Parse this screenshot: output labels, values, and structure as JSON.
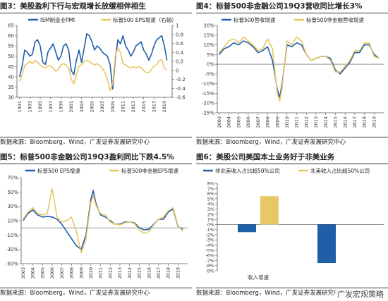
{
  "colors": {
    "blue": "#1f5fa8",
    "gold": "#e8c766",
    "axis": "#555555",
    "text": "#222222"
  },
  "panels": [
    {
      "title": "图3：美股盈利下行与宏观增长放缓相伴相生",
      "source": "数据来源：Bloomberg，Wind，广发证券发展研究中心"
    },
    {
      "title": "图4：标普500非金融公司19Q3营收同比增长3%",
      "source": "数据来源：Bloomberg，Wind，广发证券发展研究中心"
    },
    {
      "title": "图5：标普500非金融公司19Q3盈利同比下跌4.5%",
      "source": "数据来源：Bloomberg，Wind，广发证券发展研究中心"
    },
    {
      "title": "图6：美股公司美国本土业务好于非美业务",
      "source": "数据来源：Bloomberg，Wind，广发证券发展研究中心"
    }
  ],
  "watermark": "广发宏观策略",
  "chart_data": [
    {
      "type": "line",
      "series": [
        {
          "name": "ISM制造业PMI",
          "axis": "left",
          "color": "#1f5fa8",
          "x": [
            1991,
            1991.5,
            1992,
            1992.5,
            1993,
            1993.5,
            1994,
            1994.5,
            1995,
            1995.5,
            1996,
            1996.5,
            1997,
            1997.5,
            1998,
            1998.5,
            1999,
            1999.5,
            2000,
            2000.5,
            2001,
            2001.5,
            2002,
            2002.5,
            2003,
            2003.5,
            2004,
            2004.5,
            2005,
            2005.5,
            2006,
            2006.5,
            2007,
            2007.5,
            2008,
            2008.5,
            2009,
            2009.5,
            2010,
            2010.5,
            2011,
            2011.5,
            2012,
            2012.5,
            2013,
            2013.5,
            2014,
            2014.5,
            2015,
            2015.5,
            2016,
            2016.5,
            2017,
            2017.5,
            2018,
            2018.5,
            2019,
            2019.5
          ],
          "values": [
            40,
            45,
            53,
            52,
            50,
            51,
            57,
            58,
            55,
            47,
            46,
            52,
            54,
            56,
            52,
            48,
            50,
            55,
            56,
            53,
            43,
            41,
            48,
            53,
            47,
            54,
            61,
            60,
            57,
            53,
            55,
            54,
            52,
            51,
            50,
            46,
            34,
            48,
            58,
            56,
            60,
            55,
            53,
            50,
            52,
            55,
            56,
            57,
            53,
            51,
            48,
            51,
            55,
            58,
            59,
            60,
            55,
            48
          ]
        },
        {
          "name": "标普500 EPS增速（右轴）",
          "axis": "right",
          "color": "#e8c766",
          "x": [
            1991,
            1991.5,
            1992,
            1992.5,
            1993,
            1993.5,
            1994,
            1994.5,
            1995,
            1995.5,
            1996,
            1996.5,
            1997,
            1997.5,
            1998,
            1998.5,
            1999,
            1999.5,
            2000,
            2000.5,
            2001,
            2001.5,
            2002,
            2002.5,
            2003,
            2003.5,
            2004,
            2004.5,
            2005,
            2005.5,
            2006,
            2006.5,
            2007,
            2007.5,
            2008,
            2008.5,
            2009,
            2009.5,
            2010,
            2010.5,
            2011,
            2011.5,
            2012,
            2012.5,
            2013,
            2013.5,
            2014,
            2014.5,
            2015,
            2015.5,
            2016,
            2016.5,
            2017,
            2017.5,
            2018,
            2018.5,
            2019,
            2019.5
          ],
          "values": [
            -0.25,
            -0.1,
            0.1,
            0.15,
            0.2,
            0.15,
            0.22,
            0.18,
            0.12,
            0.08,
            0.05,
            0.1,
            0.1,
            0.05,
            -0.02,
            0.02,
            0.12,
            0.15,
            0.12,
            0.05,
            -0.2,
            -0.3,
            -0.1,
            0.1,
            0.12,
            0.2,
            0.22,
            0.2,
            0.15,
            0.12,
            0.15,
            0.1,
            0.05,
            -0.05,
            -0.2,
            -0.45,
            -0.3,
            0.3,
            0.5,
            0.4,
            0.15,
            0.12,
            0.08,
            0.05,
            0.08,
            0.06,
            0.08,
            0.06,
            0.0,
            -0.05,
            -0.05,
            0.02,
            0.1,
            0.12,
            0.22,
            0.24,
            0.05,
            0.01
          ]
        }
      ],
      "ylim_left": [
        30,
        65
      ],
      "yticks_left": [
        30,
        35,
        40,
        45,
        50,
        55,
        60,
        65
      ],
      "ylim_right": [
        -0.6,
        1.0
      ],
      "yticks_right": [
        "-0.6",
        "-0.4",
        "-0.2",
        "0",
        "0.2",
        "0.4",
        "0.6",
        "0.8",
        "1"
      ],
      "xticks": [
        "1991",
        "1993",
        "1995",
        "1997",
        "1999",
        "2001",
        "2003",
        "2005",
        "2007",
        "2009",
        "2011",
        "2013",
        "2015",
        "2017",
        "2019"
      ],
      "xlim": [
        1990.5,
        2020.5
      ],
      "legend": "top"
    },
    {
      "type": "line",
      "series": [
        {
          "name": "标普500营收增速",
          "color": "#1f5fa8",
          "x": [
            2003,
            2003.5,
            2004,
            2004.5,
            2005,
            2005.5,
            2006,
            2006.5,
            2007,
            2007.5,
            2008,
            2008.5,
            2009,
            2009.25,
            2009.5,
            2010,
            2010.5,
            2011,
            2011.5,
            2012,
            2012.5,
            2013,
            2013.5,
            2014,
            2014.5,
            2015,
            2015.5,
            2016,
            2016.5,
            2017,
            2017.5,
            2018,
            2018.5,
            2019,
            2019.5
          ],
          "values": [
            5,
            8,
            9,
            11,
            10,
            12,
            11,
            9,
            6,
            7,
            9,
            2,
            -13,
            -17,
            -10,
            10,
            9,
            11,
            10,
            5,
            2,
            3,
            4,
            4,
            3,
            -3,
            -5,
            -2,
            1,
            6,
            6,
            10,
            10,
            5,
            3
          ]
        },
        {
          "name": "标普500非金融营收增速",
          "color": "#e8c766",
          "x": [
            2003,
            2003.5,
            2004,
            2004.5,
            2005,
            2005.5,
            2006,
            2006.5,
            2007,
            2007.5,
            2008,
            2008.5,
            2009,
            2009.25,
            2009.5,
            2010,
            2010.5,
            2011,
            2011.5,
            2012,
            2012.5,
            2013,
            2013.5,
            2014,
            2014.5,
            2015,
            2015.5,
            2016,
            2016.5,
            2017,
            2017.5,
            2018,
            2018.5,
            2019,
            2019.5
          ],
          "values": [
            6,
            9,
            12,
            13,
            11,
            14,
            12,
            10,
            7,
            8,
            13,
            8,
            -15,
            -19,
            -12,
            12,
            10,
            14,
            12,
            5,
            2,
            3,
            4,
            4,
            2,
            -4,
            -4,
            -1,
            2,
            7,
            7,
            11,
            11,
            4,
            3
          ]
        }
      ],
      "ylim": [
        -25,
        20
      ],
      "yticks": [
        "-25%",
        "-20%",
        "-15%",
        "-10%",
        "-5%",
        "0%",
        "5%",
        "10%",
        "15%",
        "20%"
      ],
      "xticks": [
        "2003",
        "2004",
        "2005",
        "2006",
        "2007",
        "2008",
        "2009",
        "2010",
        "2011",
        "2012",
        "2013",
        "2014",
        "2015",
        "2016",
        "2017",
        "2018",
        "2019"
      ],
      "xlim": [
        2002.8,
        2020
      ],
      "legend": "top"
    },
    {
      "type": "line",
      "series": [
        {
          "name": "标普500 EPS增速",
          "color": "#1f5fa8",
          "x": [
            2003,
            2003.5,
            2004,
            2004.5,
            2005,
            2005.5,
            2006,
            2006.5,
            2007,
            2007.5,
            2008,
            2008.5,
            2009,
            2009.5,
            2010,
            2010.25,
            2010.5,
            2011,
            2011.5,
            2012,
            2012.5,
            2013,
            2013.5,
            2014,
            2014.5,
            2015,
            2015.5,
            2016,
            2016.5,
            2017,
            2017.5,
            2018,
            2018.5,
            2019,
            2019.5
          ],
          "values": [
            10,
            20,
            25,
            18,
            15,
            16,
            15,
            12,
            5,
            -5,
            -15,
            -25,
            -30,
            -10,
            40,
            52,
            35,
            18,
            15,
            10,
            5,
            5,
            8,
            8,
            7,
            0,
            -3,
            -2,
            5,
            12,
            12,
            22,
            26,
            2,
            -2
          ]
        },
        {
          "name": "标普500非金融EPS增速",
          "color": "#e8c766",
          "x": [
            2003,
            2003.5,
            2004,
            2004.5,
            2005,
            2005.5,
            2006,
            2006.5,
            2007,
            2007.5,
            2008,
            2008.5,
            2009,
            2009.5,
            2010,
            2010.25,
            2010.5,
            2011,
            2011.5,
            2012,
            2012.5,
            2013,
            2013.5,
            2014,
            2014.5,
            2015,
            2015.5,
            2016,
            2016.5,
            2017,
            2017.5,
            2018,
            2018.5,
            2019,
            2019.5
          ],
          "values": [
            12,
            22,
            28,
            20,
            18,
            20,
            55,
            15,
            8,
            10,
            15,
            -5,
            -35,
            -15,
            35,
            45,
            32,
            20,
            18,
            8,
            5,
            4,
            7,
            8,
            6,
            -3,
            -8,
            -5,
            4,
            12,
            15,
            24,
            28,
            3,
            -4.5
          ]
        }
      ],
      "ylim": [
        -50,
        70
      ],
      "yticks": [
        "-50%",
        "-30%",
        "-10%",
        "10%",
        "30%",
        "50%",
        "70%"
      ],
      "xticks": [
        "2003",
        "2004",
        "2005",
        "2006",
        "2007",
        "2008",
        "2009",
        "2010",
        "2011",
        "2012",
        "2013",
        "2014",
        "2015",
        "2016",
        "2017",
        "2018",
        "2019"
      ],
      "xlim": [
        2002.8,
        2020
      ],
      "legend": "top"
    },
    {
      "type": "bar",
      "categories": [
        "收入增速"
      ],
      "series": [
        {
          "name": "非北美收入占比超50%公司",
          "color": "#1f5fa8",
          "values": [
            -1.5
          ],
          "extra_values": [
            -7.5
          ]
        },
        {
          "name": "北美收入占比超50%公司",
          "color": "#e8c766",
          "values": [
            5.5
          ]
        }
      ],
      "ylim": [
        -9,
        8
      ],
      "yticks": [
        "-9%",
        "-8%",
        "-7%",
        "-6%",
        "-5%",
        "-4%",
        "-3%",
        "-2%",
        "-1%",
        "0%",
        "1%",
        "2%",
        "3%",
        "4%",
        "5%",
        "6%",
        "7%",
        "8%"
      ],
      "legend": "top"
    }
  ]
}
